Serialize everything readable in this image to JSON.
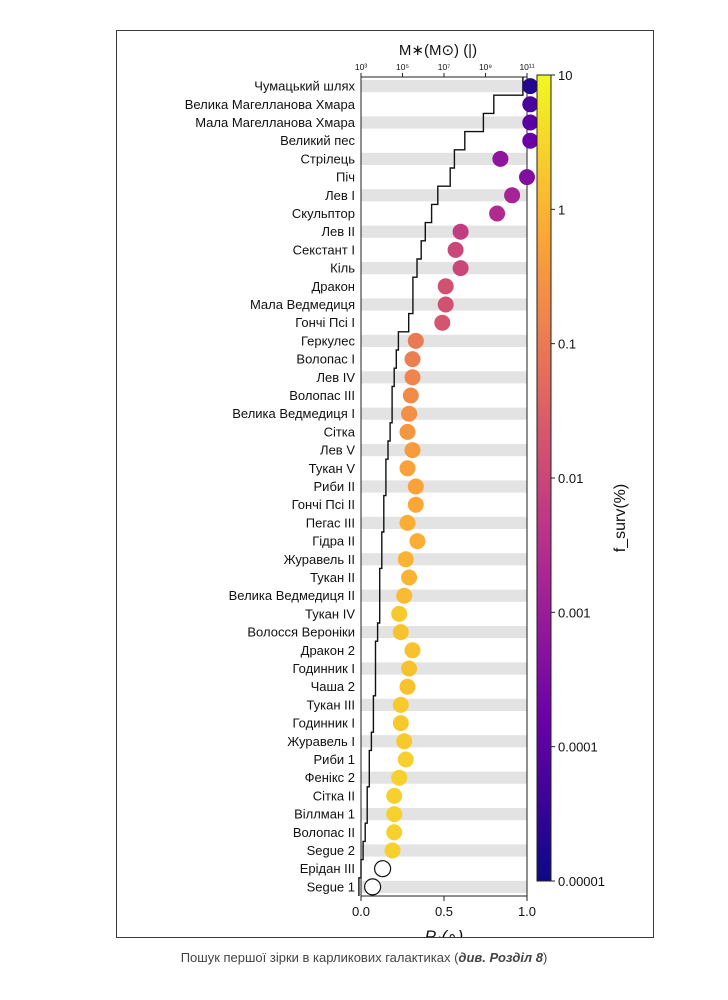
{
  "caption": {
    "text": "Пошук першої зірки в карликових галактиках (",
    "ref": "див. Розділ 8",
    "close": ")"
  },
  "chart_data": {
    "type": "scatter",
    "xlabel": "P₁(∘)",
    "xlim": [
      0.0,
      1.0
    ],
    "xticks": [
      "0.0",
      "0.5",
      "1.0"
    ],
    "top_axis": {
      "label": "M∗(M⊙)  (|)",
      "ticks": [
        "10³",
        "10⁵",
        "10⁷",
        "10⁹",
        "10¹¹"
      ],
      "log_range": [
        3,
        11
      ]
    },
    "colorbar": {
      "label": "f_surv(%)",
      "ticks": [
        "10",
        "1",
        "0.1",
        "0.01",
        "0.001",
        "0.0001",
        "0.00001"
      ],
      "log_range": [
        -5,
        1
      ],
      "colors": [
        "#0d0887",
        "#6a00a8",
        "#b12a90",
        "#e16462",
        "#fca636",
        "#f0f921"
      ]
    },
    "galaxies": [
      {
        "name": "Чумацький шлях",
        "p1": 1.02,
        "logM": 10.8,
        "fsurv_log": -4.7
      },
      {
        "name": "Велика Магелланова Хмара",
        "p1": 1.02,
        "logM": 9.4,
        "fsurv_log": -4.2
      },
      {
        "name": "Мала Магелланова Хмара",
        "p1": 1.02,
        "logM": 8.9,
        "fsurv_log": -4.0
      },
      {
        "name": "Великий пес",
        "p1": 1.02,
        "logM": 8.0,
        "fsurv_log": -3.8
      },
      {
        "name": "Стрілець",
        "p1": 0.84,
        "logM": 7.5,
        "fsurv_log": -3.2
      },
      {
        "name": "Піч",
        "p1": 1.0,
        "logM": 7.3,
        "fsurv_log": -3.4
      },
      {
        "name": "Лев I",
        "p1": 0.91,
        "logM": 6.7,
        "fsurv_log": -2.8
      },
      {
        "name": "Скульптор",
        "p1": 0.82,
        "logM": 6.4,
        "fsurv_log": -2.6
      },
      {
        "name": "Лев II",
        "p1": 0.6,
        "logM": 6.1,
        "fsurv_log": -2.2
      },
      {
        "name": "Секстант I",
        "p1": 0.57,
        "logM": 5.9,
        "fsurv_log": -2.0
      },
      {
        "name": "Кіль",
        "p1": 0.6,
        "logM": 5.7,
        "fsurv_log": -2.0
      },
      {
        "name": "Дракон",
        "p1": 0.51,
        "logM": 5.5,
        "fsurv_log": -1.8
      },
      {
        "name": "Мала Ведмедиця",
        "p1": 0.51,
        "logM": 5.5,
        "fsurv_log": -1.8
      },
      {
        "name": "Гончі Псі I",
        "p1": 0.49,
        "logM": 5.3,
        "fsurv_log": -1.7
      },
      {
        "name": "Геркулес",
        "p1": 0.33,
        "logM": 4.8,
        "fsurv_log": -1.0
      },
      {
        "name": "Волопас I",
        "p1": 0.31,
        "logM": 4.7,
        "fsurv_log": -0.9
      },
      {
        "name": "Лев IV",
        "p1": 0.31,
        "logM": 4.6,
        "fsurv_log": -0.8
      },
      {
        "name": "Волопас III",
        "p1": 0.3,
        "logM": 4.5,
        "fsurv_log": -0.7
      },
      {
        "name": "Велика Ведмедиця I",
        "p1": 0.29,
        "logM": 4.5,
        "fsurv_log": -0.6
      },
      {
        "name": "Сітка",
        "p1": 0.28,
        "logM": 4.4,
        "fsurv_log": -0.5
      },
      {
        "name": "Лев V",
        "p1": 0.31,
        "logM": 4.3,
        "fsurv_log": -0.4
      },
      {
        "name": "Тукан V",
        "p1": 0.28,
        "logM": 4.2,
        "fsurv_log": -0.3
      },
      {
        "name": "Риби II",
        "p1": 0.33,
        "logM": 4.2,
        "fsurv_log": -0.3
      },
      {
        "name": "Гончі Псі II",
        "p1": 0.33,
        "logM": 4.1,
        "fsurv_log": -0.2
      },
      {
        "name": "Пегас III",
        "p1": 0.28,
        "logM": 4.1,
        "fsurv_log": -0.1
      },
      {
        "name": "Гідра II",
        "p1": 0.34,
        "logM": 4.0,
        "fsurv_log": -0.1
      },
      {
        "name": "Журавель II",
        "p1": 0.27,
        "logM": 4.0,
        "fsurv_log": 0.0
      },
      {
        "name": "Тукан II",
        "p1": 0.29,
        "logM": 3.9,
        "fsurv_log": 0.0
      },
      {
        "name": "Велика Ведмедиця II",
        "p1": 0.26,
        "logM": 3.9,
        "fsurv_log": 0.1
      },
      {
        "name": "Тукан IV",
        "p1": 0.23,
        "logM": 3.9,
        "fsurv_log": 0.3
      },
      {
        "name": "Волосся Вероніки",
        "p1": 0.24,
        "logM": 3.8,
        "fsurv_log": 0.2
      },
      {
        "name": "Дракон 2",
        "p1": 0.31,
        "logM": 3.7,
        "fsurv_log": 0.2
      },
      {
        "name": "Годинник I",
        "p1": 0.29,
        "logM": 3.7,
        "fsurv_log": 0.2
      },
      {
        "name": "Чаша 2",
        "p1": 0.28,
        "logM": 3.7,
        "fsurv_log": 0.2
      },
      {
        "name": "Тукан III",
        "p1": 0.24,
        "logM": 3.6,
        "fsurv_log": 0.3
      },
      {
        "name": "Годинник I",
        "p1": 0.24,
        "logM": 3.6,
        "fsurv_log": 0.3
      },
      {
        "name": "Журавель I",
        "p1": 0.26,
        "logM": 3.5,
        "fsurv_log": 0.3
      },
      {
        "name": "Риби 1",
        "p1": 0.27,
        "logM": 3.4,
        "fsurv_log": 0.4
      },
      {
        "name": "Фенікс 2",
        "p1": 0.23,
        "logM": 3.4,
        "fsurv_log": 0.4
      },
      {
        "name": "Сітка II",
        "p1": 0.2,
        "logM": 3.3,
        "fsurv_log": 0.4
      },
      {
        "name": "Віллман 1",
        "p1": 0.2,
        "logM": 3.3,
        "fsurv_log": 0.4
      },
      {
        "name": "Волопас II",
        "p1": 0.2,
        "logM": 3.2,
        "fsurv_log": 0.4
      },
      {
        "name": "Segue 2",
        "p1": 0.19,
        "logM": 3.1,
        "fsurv_log": 0.4
      },
      {
        "name": "Ерідан III",
        "p1": 0.13,
        "logM": 3.0,
        "fsurv_log": 2.0
      },
      {
        "name": "Segue 1",
        "p1": 0.07,
        "logM": 2.9,
        "fsurv_log": 2.0
      }
    ]
  }
}
